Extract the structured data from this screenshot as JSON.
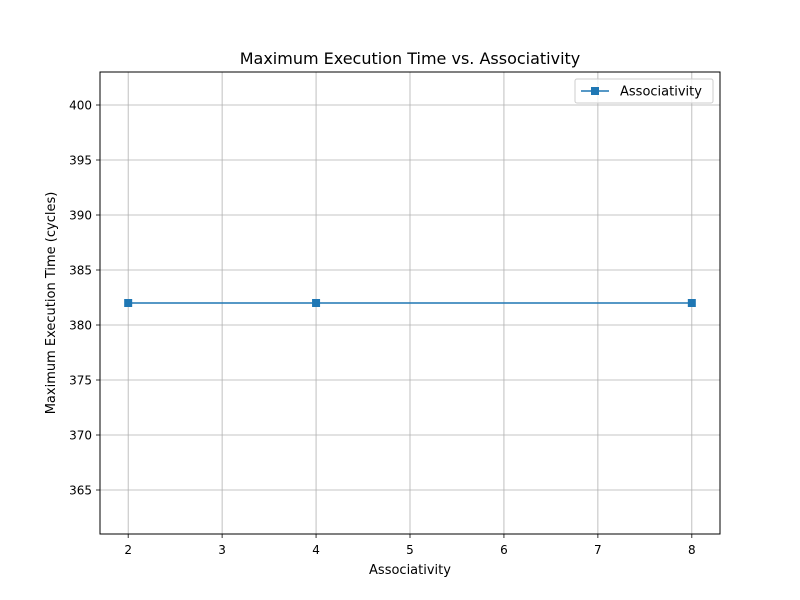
{
  "chart_data": {
    "type": "line",
    "title": "Maximum Execution Time vs. Associativity",
    "xlabel": "Associativity",
    "ylabel": "Maximum Execution Time (cycles)",
    "xlim": [
      1.7,
      8.3
    ],
    "ylim": [
      361,
      403
    ],
    "xticks": [
      2,
      3,
      4,
      5,
      6,
      7,
      8
    ],
    "yticks": [
      365,
      370,
      375,
      380,
      385,
      390,
      395,
      400
    ],
    "grid": true,
    "legend_position": "top-right",
    "series": [
      {
        "name": "Associativity",
        "marker": "square",
        "color": "#1f77b4",
        "x": [
          2,
          4,
          8
        ],
        "y": [
          382,
          382,
          382
        ]
      }
    ]
  }
}
